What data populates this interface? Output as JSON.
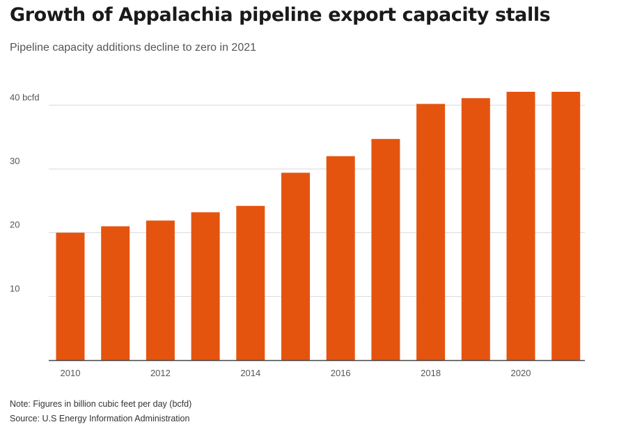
{
  "title": "Growth of Appalachia pipeline export capacity stalls",
  "subtitle": "Pipeline capacity additions decline to zero in 2021",
  "note": "Note: Figures in billion cubic feet per day (bcfd)",
  "source": "Source: U.S Energy Information Administration",
  "colors": {
    "bar": "#e5540f",
    "grid": "#d9d9d9",
    "axis": "#444444"
  },
  "chart_data": {
    "type": "bar",
    "title": "Growth of Appalachia pipeline export capacity stalls",
    "subtitle": "Pipeline capacity additions decline to zero in 2021",
    "xlabel": "",
    "ylabel": "",
    "categories": [
      "2010",
      "2011",
      "2012",
      "2013",
      "2014",
      "2015",
      "2016",
      "2017",
      "2018",
      "2019",
      "2020",
      "2021"
    ],
    "values": [
      20.0,
      21.0,
      21.9,
      23.2,
      24.2,
      29.4,
      32.0,
      34.7,
      40.2,
      41.1,
      42.1,
      42.1
    ],
    "x_tick_labels": [
      "2010",
      "2012",
      "2014",
      "2016",
      "2018",
      "2020"
    ],
    "y_ticks": [
      10,
      20,
      30,
      40
    ],
    "y_tick_labels": [
      "10",
      "20",
      "30",
      "40 bcfd"
    ],
    "ylim": [
      0,
      42.1
    ],
    "grid": true,
    "legend": "none"
  }
}
